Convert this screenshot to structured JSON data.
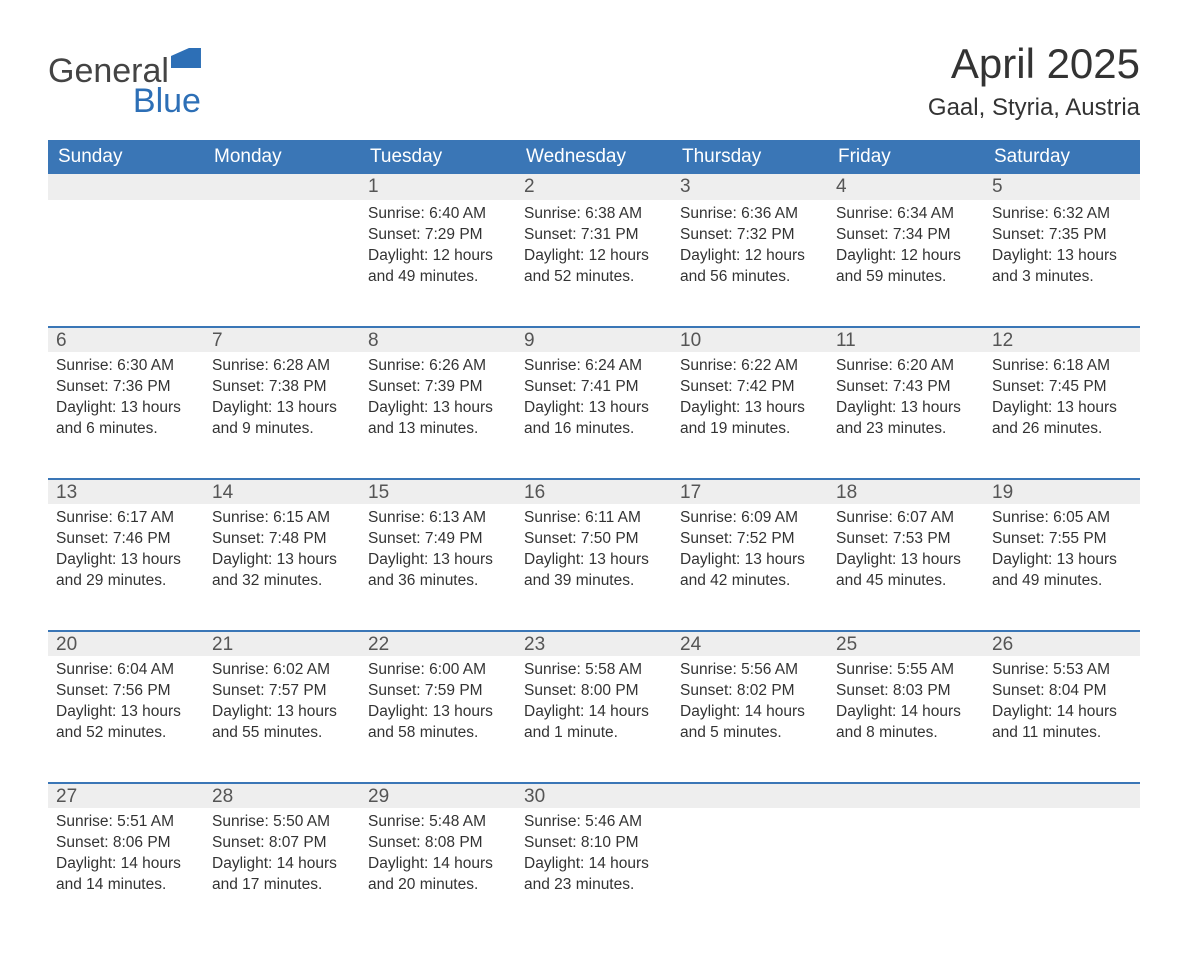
{
  "logo": {
    "word1": "General",
    "word2": "Blue"
  },
  "title": "April 2025",
  "location": "Gaal, Styria, Austria",
  "colors": {
    "header_bg": "#3a76b6",
    "header_text": "#ffffff",
    "daynum_bg": "#eeeeee",
    "rule": "#3a76b6",
    "body_text": "#333333",
    "logo_blue": "#2d6fb6",
    "page_bg": "#ffffff"
  },
  "typography": {
    "title_fontsize_pt": 32,
    "location_fontsize_pt": 18,
    "header_fontsize_pt": 14,
    "daynum_fontsize_pt": 14,
    "body_fontsize_pt": 12,
    "font_family": "Arial"
  },
  "layout": {
    "columns": 7,
    "rows": 5,
    "first_day_column_index": 2
  },
  "weekdays": [
    "Sunday",
    "Monday",
    "Tuesday",
    "Wednesday",
    "Thursday",
    "Friday",
    "Saturday"
  ],
  "labels": {
    "sunrise": "Sunrise:",
    "sunset": "Sunset:",
    "daylight": "Daylight:"
  },
  "days": [
    {
      "n": 1,
      "sunrise": "6:40 AM",
      "sunset": "7:29 PM",
      "daylight": "12 hours and 49 minutes."
    },
    {
      "n": 2,
      "sunrise": "6:38 AM",
      "sunset": "7:31 PM",
      "daylight": "12 hours and 52 minutes."
    },
    {
      "n": 3,
      "sunrise": "6:36 AM",
      "sunset": "7:32 PM",
      "daylight": "12 hours and 56 minutes."
    },
    {
      "n": 4,
      "sunrise": "6:34 AM",
      "sunset": "7:34 PM",
      "daylight": "12 hours and 59 minutes."
    },
    {
      "n": 5,
      "sunrise": "6:32 AM",
      "sunset": "7:35 PM",
      "daylight": "13 hours and 3 minutes."
    },
    {
      "n": 6,
      "sunrise": "6:30 AM",
      "sunset": "7:36 PM",
      "daylight": "13 hours and 6 minutes."
    },
    {
      "n": 7,
      "sunrise": "6:28 AM",
      "sunset": "7:38 PM",
      "daylight": "13 hours and 9 minutes."
    },
    {
      "n": 8,
      "sunrise": "6:26 AM",
      "sunset": "7:39 PM",
      "daylight": "13 hours and 13 minutes."
    },
    {
      "n": 9,
      "sunrise": "6:24 AM",
      "sunset": "7:41 PM",
      "daylight": "13 hours and 16 minutes."
    },
    {
      "n": 10,
      "sunrise": "6:22 AM",
      "sunset": "7:42 PM",
      "daylight": "13 hours and 19 minutes."
    },
    {
      "n": 11,
      "sunrise": "6:20 AM",
      "sunset": "7:43 PM",
      "daylight": "13 hours and 23 minutes."
    },
    {
      "n": 12,
      "sunrise": "6:18 AM",
      "sunset": "7:45 PM",
      "daylight": "13 hours and 26 minutes."
    },
    {
      "n": 13,
      "sunrise": "6:17 AM",
      "sunset": "7:46 PM",
      "daylight": "13 hours and 29 minutes."
    },
    {
      "n": 14,
      "sunrise": "6:15 AM",
      "sunset": "7:48 PM",
      "daylight": "13 hours and 32 minutes."
    },
    {
      "n": 15,
      "sunrise": "6:13 AM",
      "sunset": "7:49 PM",
      "daylight": "13 hours and 36 minutes."
    },
    {
      "n": 16,
      "sunrise": "6:11 AM",
      "sunset": "7:50 PM",
      "daylight": "13 hours and 39 minutes."
    },
    {
      "n": 17,
      "sunrise": "6:09 AM",
      "sunset": "7:52 PM",
      "daylight": "13 hours and 42 minutes."
    },
    {
      "n": 18,
      "sunrise": "6:07 AM",
      "sunset": "7:53 PM",
      "daylight": "13 hours and 45 minutes."
    },
    {
      "n": 19,
      "sunrise": "6:05 AM",
      "sunset": "7:55 PM",
      "daylight": "13 hours and 49 minutes."
    },
    {
      "n": 20,
      "sunrise": "6:04 AM",
      "sunset": "7:56 PM",
      "daylight": "13 hours and 52 minutes."
    },
    {
      "n": 21,
      "sunrise": "6:02 AM",
      "sunset": "7:57 PM",
      "daylight": "13 hours and 55 minutes."
    },
    {
      "n": 22,
      "sunrise": "6:00 AM",
      "sunset": "7:59 PM",
      "daylight": "13 hours and 58 minutes."
    },
    {
      "n": 23,
      "sunrise": "5:58 AM",
      "sunset": "8:00 PM",
      "daylight": "14 hours and 1 minute."
    },
    {
      "n": 24,
      "sunrise": "5:56 AM",
      "sunset": "8:02 PM",
      "daylight": "14 hours and 5 minutes."
    },
    {
      "n": 25,
      "sunrise": "5:55 AM",
      "sunset": "8:03 PM",
      "daylight": "14 hours and 8 minutes."
    },
    {
      "n": 26,
      "sunrise": "5:53 AM",
      "sunset": "8:04 PM",
      "daylight": "14 hours and 11 minutes."
    },
    {
      "n": 27,
      "sunrise": "5:51 AM",
      "sunset": "8:06 PM",
      "daylight": "14 hours and 14 minutes."
    },
    {
      "n": 28,
      "sunrise": "5:50 AM",
      "sunset": "8:07 PM",
      "daylight": "14 hours and 17 minutes."
    },
    {
      "n": 29,
      "sunrise": "5:48 AM",
      "sunset": "8:08 PM",
      "daylight": "14 hours and 20 minutes."
    },
    {
      "n": 30,
      "sunrise": "5:46 AM",
      "sunset": "8:10 PM",
      "daylight": "14 hours and 23 minutes."
    }
  ]
}
